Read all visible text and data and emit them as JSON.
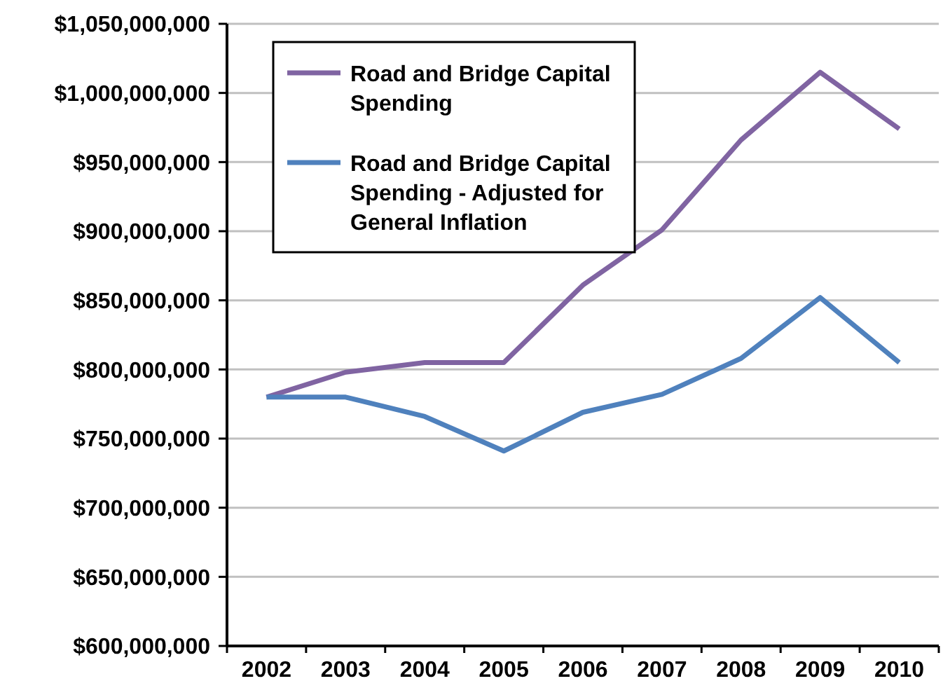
{
  "chart_data": {
    "type": "line",
    "categories": [
      "2002",
      "2003",
      "2004",
      "2005",
      "2006",
      "2007",
      "2008",
      "2009",
      "2010"
    ],
    "series": [
      {
        "name": "Road and Bridge Capital Spending",
        "color": "#8064a2",
        "values": [
          780000000,
          798000000,
          805000000,
          805000000,
          861000000,
          901000000,
          966000000,
          1015000000,
          974000000
        ]
      },
      {
        "name": "Road and Bridge Capital Spending - Adjusted for General Inflation",
        "color": "#4f81bd",
        "values": [
          780000000,
          780000000,
          766000000,
          741000000,
          769000000,
          782000000,
          808000000,
          852000000,
          805000000
        ]
      }
    ],
    "ylim": [
      600000000,
      1050000000
    ],
    "yticks": [
      {
        "value": 600000000,
        "label": "$600,000,000"
      },
      {
        "value": 650000000,
        "label": "$650,000,000"
      },
      {
        "value": 700000000,
        "label": "$700,000,000"
      },
      {
        "value": 750000000,
        "label": "$750,000,000"
      },
      {
        "value": 800000000,
        "label": "$800,000,000"
      },
      {
        "value": 850000000,
        "label": "$850,000,000"
      },
      {
        "value": 900000000,
        "label": "$900,000,000"
      },
      {
        "value": 950000000,
        "label": "$950,000,000"
      },
      {
        "value": 1000000000,
        "label": "$1,000,000,000"
      },
      {
        "value": 1050000000,
        "label": "$1,050,000,000"
      }
    ],
    "grid": "y",
    "legend": "top left",
    "marker": "none",
    "line_style": "solid"
  }
}
